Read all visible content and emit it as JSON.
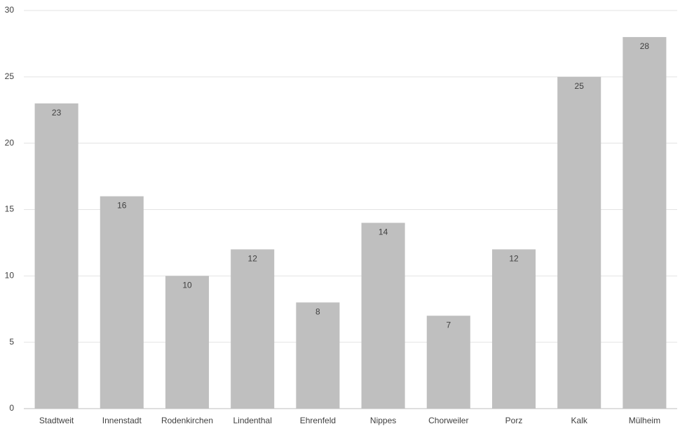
{
  "chart_data": {
    "type": "bar",
    "categories": [
      "Stadtweit",
      "Innenstadt",
      "Rodenkirchen",
      "Lindenthal",
      "Ehrenfeld",
      "Nippes",
      "Chorweiler",
      "Porz",
      "Kalk",
      "Mülheim"
    ],
    "values": [
      23,
      16,
      10,
      12,
      8,
      14,
      7,
      12,
      25,
      28
    ],
    "color": "#bfbfbf",
    "ylim": [
      0,
      30
    ],
    "yticks": [
      0,
      5,
      10,
      15,
      20,
      25,
      30
    ],
    "grid": true,
    "data_labels": true
  }
}
